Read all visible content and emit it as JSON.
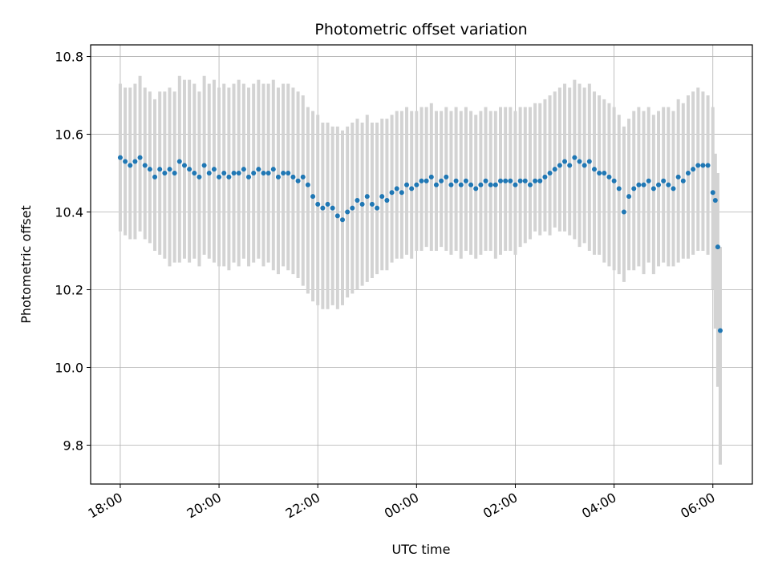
{
  "chart_data": {
    "type": "scatter",
    "title": "Photometric offset variation",
    "xlabel": "UTC time",
    "ylabel": "Photometric offset",
    "x_tick_labels": [
      "18:00",
      "20:00",
      "22:00",
      "00:00",
      "02:00",
      "04:00",
      "06:00"
    ],
    "x_tick_hours": [
      0,
      2,
      4,
      6,
      8,
      10,
      12
    ],
    "y_ticks": [
      9.8,
      10.0,
      10.2,
      10.4,
      10.6,
      10.8
    ],
    "y_tick_labels": [
      "9.8",
      "10.0",
      "10.2",
      "10.4",
      "10.6",
      "10.8"
    ],
    "xlim_hours": [
      -0.6,
      12.8
    ],
    "ylim": [
      9.7,
      10.83
    ],
    "grid": true,
    "colors": {
      "points": "#1f77b4",
      "errorbars": "#d3d3d3"
    },
    "series": [
      {
        "x_hours": [
          0.0,
          0.1,
          0.2,
          0.3,
          0.4,
          0.5,
          0.6,
          0.7,
          0.8,
          0.9,
          1.0,
          1.1,
          1.2,
          1.3,
          1.4,
          1.5,
          1.6,
          1.7,
          1.8,
          1.9,
          2.0,
          2.1,
          2.2,
          2.3,
          2.4,
          2.5,
          2.6,
          2.7,
          2.8,
          2.9,
          3.0,
          3.1,
          3.2,
          3.3,
          3.4,
          3.5,
          3.6,
          3.7,
          3.8,
          3.9,
          4.0,
          4.1,
          4.2,
          4.3,
          4.4,
          4.5,
          4.6,
          4.7,
          4.8,
          4.9,
          5.0,
          5.1,
          5.2,
          5.3,
          5.4,
          5.5,
          5.6,
          5.7,
          5.8,
          5.9,
          6.0,
          6.1,
          6.2,
          6.3,
          6.4,
          6.5,
          6.6,
          6.7,
          6.8,
          6.9,
          7.0,
          7.1,
          7.2,
          7.3,
          7.4,
          7.5,
          7.6,
          7.7,
          7.8,
          7.9,
          8.0,
          8.1,
          8.2,
          8.3,
          8.4,
          8.5,
          8.6,
          8.7,
          8.8,
          8.9,
          9.0,
          9.1,
          9.2,
          9.3,
          9.4,
          9.5,
          9.6,
          9.7,
          9.8,
          9.9,
          10.0,
          10.1,
          10.2,
          10.3,
          10.4,
          10.5,
          10.6,
          10.7,
          10.8,
          10.9,
          11.0,
          11.1,
          11.2,
          11.3,
          11.4,
          11.5,
          11.6,
          11.7,
          11.8,
          11.9,
          12.0,
          12.05,
          12.1,
          12.15
        ],
        "y": [
          10.54,
          10.53,
          10.52,
          10.53,
          10.54,
          10.52,
          10.51,
          10.49,
          10.51,
          10.5,
          10.51,
          10.5,
          10.53,
          10.52,
          10.51,
          10.5,
          10.49,
          10.52,
          10.5,
          10.51,
          10.49,
          10.5,
          10.49,
          10.5,
          10.5,
          10.51,
          10.49,
          10.5,
          10.51,
          10.5,
          10.5,
          10.51,
          10.49,
          10.5,
          10.5,
          10.49,
          10.48,
          10.49,
          10.47,
          10.44,
          10.42,
          10.41,
          10.42,
          10.41,
          10.39,
          10.38,
          10.4,
          10.41,
          10.43,
          10.42,
          10.44,
          10.42,
          10.41,
          10.44,
          10.43,
          10.45,
          10.46,
          10.45,
          10.47,
          10.46,
          10.47,
          10.48,
          10.48,
          10.49,
          10.47,
          10.48,
          10.49,
          10.47,
          10.48,
          10.47,
          10.48,
          10.47,
          10.46,
          10.47,
          10.48,
          10.47,
          10.47,
          10.48,
          10.48,
          10.48,
          10.47,
          10.48,
          10.48,
          10.47,
          10.48,
          10.48,
          10.49,
          10.5,
          10.51,
          10.52,
          10.53,
          10.52,
          10.54,
          10.53,
          10.52,
          10.53,
          10.51,
          10.5,
          10.5,
          10.49,
          10.48,
          10.46,
          10.4,
          10.44,
          10.46,
          10.47,
          10.47,
          10.48,
          10.46,
          10.47,
          10.48,
          10.47,
          10.46,
          10.49,
          10.48,
          10.5,
          10.51,
          10.52,
          10.52,
          10.52,
          10.45,
          10.43,
          10.31,
          10.095
        ],
        "lo": [
          10.35,
          10.34,
          10.33,
          10.33,
          10.35,
          10.33,
          10.32,
          10.3,
          10.29,
          10.28,
          10.26,
          10.27,
          10.27,
          10.28,
          10.27,
          10.28,
          10.26,
          10.29,
          10.28,
          10.27,
          10.26,
          10.26,
          10.25,
          10.27,
          10.26,
          10.28,
          10.26,
          10.27,
          10.28,
          10.26,
          10.27,
          10.25,
          10.24,
          10.26,
          10.25,
          10.24,
          10.23,
          10.21,
          10.19,
          10.17,
          10.16,
          10.15,
          10.15,
          10.16,
          10.15,
          10.16,
          10.18,
          10.19,
          10.2,
          10.21,
          10.22,
          10.23,
          10.24,
          10.25,
          10.25,
          10.27,
          10.28,
          10.28,
          10.29,
          10.28,
          10.3,
          10.3,
          10.31,
          10.3,
          10.3,
          10.31,
          10.3,
          10.29,
          10.3,
          10.28,
          10.3,
          10.29,
          10.28,
          10.29,
          10.3,
          10.3,
          10.28,
          10.29,
          10.3,
          10.3,
          10.29,
          10.31,
          10.32,
          10.33,
          10.35,
          10.34,
          10.35,
          10.34,
          10.36,
          10.35,
          10.35,
          10.34,
          10.33,
          10.31,
          10.32,
          10.3,
          10.29,
          10.29,
          10.27,
          10.26,
          10.25,
          10.24,
          10.22,
          10.25,
          10.25,
          10.26,
          10.24,
          10.27,
          10.24,
          10.26,
          10.27,
          10.26,
          10.26,
          10.27,
          10.28,
          10.28,
          10.29,
          10.3,
          10.3,
          10.29,
          10.2,
          10.1,
          9.95,
          9.75
        ],
        "hi": [
          10.73,
          10.72,
          10.72,
          10.73,
          10.75,
          10.72,
          10.71,
          10.69,
          10.71,
          10.71,
          10.72,
          10.71,
          10.75,
          10.74,
          10.74,
          10.73,
          10.71,
          10.75,
          10.73,
          10.74,
          10.72,
          10.73,
          10.72,
          10.73,
          10.74,
          10.73,
          10.72,
          10.73,
          10.74,
          10.73,
          10.73,
          10.74,
          10.72,
          10.73,
          10.73,
          10.72,
          10.71,
          10.7,
          10.67,
          10.66,
          10.65,
          10.63,
          10.63,
          10.62,
          10.62,
          10.61,
          10.62,
          10.63,
          10.64,
          10.63,
          10.65,
          10.63,
          10.63,
          10.64,
          10.64,
          10.65,
          10.66,
          10.66,
          10.67,
          10.66,
          10.66,
          10.67,
          10.67,
          10.68,
          10.66,
          10.66,
          10.67,
          10.66,
          10.67,
          10.66,
          10.67,
          10.66,
          10.65,
          10.66,
          10.67,
          10.66,
          10.66,
          10.67,
          10.67,
          10.67,
          10.66,
          10.67,
          10.67,
          10.67,
          10.68,
          10.68,
          10.69,
          10.7,
          10.71,
          10.72,
          10.73,
          10.72,
          10.74,
          10.73,
          10.72,
          10.73,
          10.71,
          10.7,
          10.69,
          10.68,
          10.67,
          10.65,
          10.62,
          10.64,
          10.66,
          10.67,
          10.66,
          10.67,
          10.65,
          10.66,
          10.67,
          10.67,
          10.66,
          10.69,
          10.68,
          10.7,
          10.71,
          10.72,
          10.71,
          10.7,
          10.67,
          10.55,
          10.5,
          10.31
        ]
      }
    ]
  }
}
